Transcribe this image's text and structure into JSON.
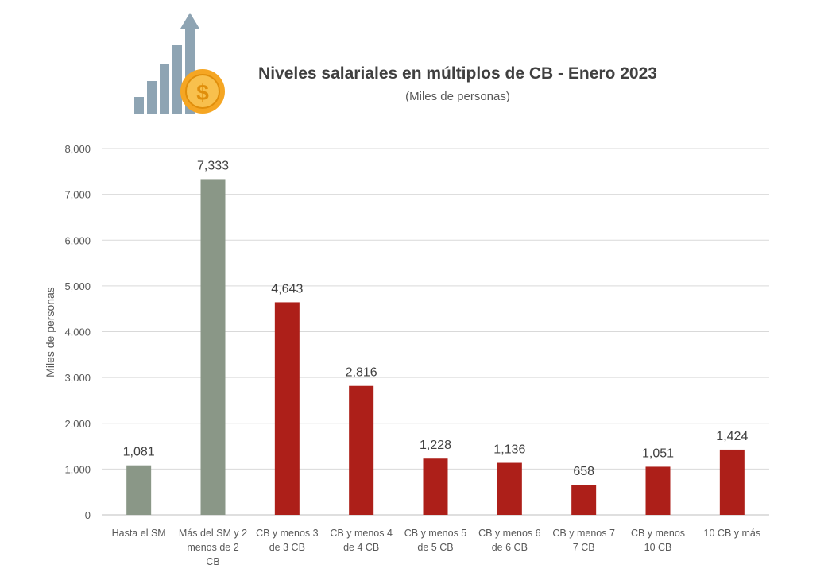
{
  "chart_data": {
    "type": "bar",
    "title": "Niveles salariales en múltiplos de CB - Enero 2023",
    "subtitle": "(Miles de personas)",
    "xlabel": "",
    "ylabel": "Miles de personas",
    "ylim": [
      0,
      8000
    ],
    "yticks": [
      0,
      1000,
      2000,
      3000,
      4000,
      5000,
      6000,
      7000,
      8000
    ],
    "ytick_labels": [
      "0",
      "1,000",
      "2,000",
      "3,000",
      "4,000",
      "5,000",
      "6,000",
      "7,000",
      "8,000"
    ],
    "grid": true,
    "legend": "none",
    "categories": [
      [
        "Hasta el SM"
      ],
      [
        "Más del SM y 2",
        "menos de 2",
        "CB"
      ],
      [
        "CB y menos 3",
        "de 3 CB"
      ],
      [
        "CB y menos 4",
        "de 4 CB"
      ],
      [
        "CB y menos 5",
        "de 5 CB"
      ],
      [
        "CB y menos 6",
        "de 6 CB"
      ],
      [
        "CB y menos 7",
        "7 CB"
      ],
      [
        "CB y menos",
        "10 CB"
      ],
      [
        "10 CB y más"
      ]
    ],
    "values": [
      1081,
      7333,
      4643,
      2816,
      1228,
      1136,
      658,
      1051,
      1424
    ],
    "value_labels": [
      "1,081",
      "7,333",
      "4,643",
      "2,816",
      "1,228",
      "1,136",
      "658",
      "1,051",
      "1,424"
    ],
    "bar_colors": [
      "#8a9787",
      "#8a9787",
      "#ad1f19",
      "#ad1f19",
      "#ad1f19",
      "#ad1f19",
      "#ad1f19",
      "#ad1f19",
      "#ad1f19"
    ]
  },
  "header_icon": {
    "icon": "growth-chart-dollar-icon",
    "bar_color": "#8ea4b3",
    "coin_color": "#f5a623",
    "coin_symbol": "$"
  },
  "colors": {
    "grid": "#d9d9d9",
    "axis_text": "#595959",
    "title": "#404040"
  }
}
